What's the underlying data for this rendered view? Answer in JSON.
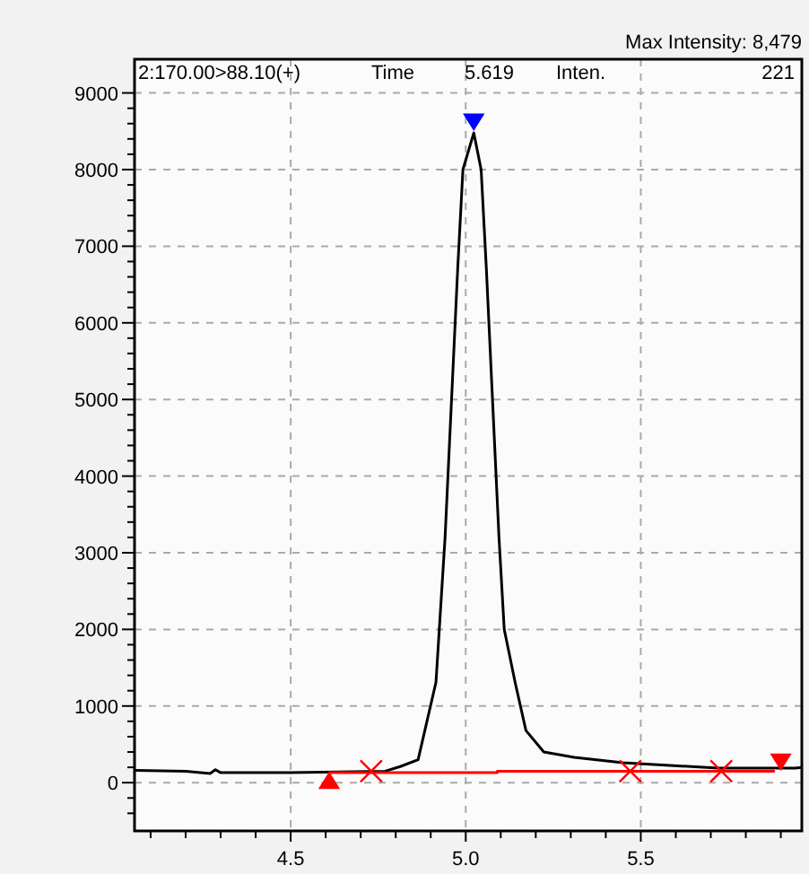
{
  "chart_data": {
    "type": "line",
    "annotations": [
      "Max Intensity:  8,479",
      "2:170.00>88.10(+)",
      "Time",
      "5.619",
      "Inten.",
      "221"
    ],
    "xlim": [
      4.054,
      5.96
    ],
    "ylim": [
      -630,
      9440
    ],
    "xticks": [
      {
        "value": 4.1,
        "label": null
      },
      {
        "value": 4.2,
        "label": null
      },
      {
        "value": 4.3,
        "label": null
      },
      {
        "value": 4.4,
        "label": null
      },
      4.5,
      {
        "value": 4.6,
        "label": null
      },
      {
        "value": 4.7,
        "label": null
      },
      {
        "value": 4.8,
        "label": null
      },
      {
        "value": 4.9,
        "label": null
      },
      {
        "value": 5.0,
        "label": "5.0"
      },
      {
        "value": 5.1,
        "label": null
      },
      {
        "value": 5.2,
        "label": null
      },
      {
        "value": 5.3,
        "label": null
      },
      {
        "value": 5.4,
        "label": null
      },
      5.5,
      {
        "value": 5.6,
        "label": null
      },
      {
        "value": 5.7,
        "label": null
      },
      {
        "value": 5.8,
        "label": null
      },
      {
        "value": 5.9,
        "label": null
      }
    ],
    "yticks": [
      {
        "value": -400,
        "label": null
      },
      {
        "value": -200,
        "label": null
      },
      0,
      {
        "value": 200,
        "label": null
      },
      {
        "value": 400,
        "label": null
      },
      {
        "value": 600,
        "label": null
      },
      {
        "value": 800,
        "label": null
      },
      1000,
      {
        "value": 1200,
        "label": null
      },
      {
        "value": 1400,
        "label": null
      },
      {
        "value": 1600,
        "label": null
      },
      {
        "value": 1800,
        "label": null
      },
      2000,
      {
        "value": 2200,
        "label": null
      },
      {
        "value": 2400,
        "label": null
      },
      {
        "value": 2600,
        "label": null
      },
      {
        "value": 2800,
        "label": null
      },
      3000,
      {
        "value": 3200,
        "label": null
      },
      {
        "value": 3400,
        "label": null
      },
      {
        "value": 3600,
        "label": null
      },
      {
        "value": 3800,
        "label": null
      },
      4000,
      {
        "value": 4200,
        "label": null
      },
      {
        "value": 4400,
        "label": null
      },
      {
        "value": 4600,
        "label": null
      },
      {
        "value": 4800,
        "label": null
      },
      5000,
      {
        "value": 5200,
        "label": null
      },
      {
        "value": 5400,
        "label": null
      },
      {
        "value": 5600,
        "label": null
      },
      {
        "value": 5800,
        "label": null
      },
      6000,
      {
        "value": 6200,
        "label": null
      },
      {
        "value": 6400,
        "label": null
      },
      {
        "value": 6600,
        "label": null
      },
      {
        "value": 6800,
        "label": null
      },
      7000,
      {
        "value": 7200,
        "label": null
      },
      {
        "value": 7400,
        "label": null
      },
      {
        "value": 7600,
        "label": null
      },
      {
        "value": 7800,
        "label": null
      },
      8000,
      {
        "value": 8200,
        "label": null
      },
      {
        "value": 8400,
        "label": null
      },
      {
        "value": 8600,
        "label": null
      },
      {
        "value": 8800,
        "label": null
      },
      9000
    ],
    "grid": true,
    "line_style": "solid",
    "series": [
      {
        "color": "#000000",
        "marker": "none",
        "x": [
          4.054,
          4.2,
          4.27,
          4.285,
          4.3,
          4.5,
          4.77,
          4.813,
          4.864,
          4.915,
          4.941,
          4.977,
          4.992,
          5.023,
          5.044,
          5.059,
          5.095,
          5.11,
          5.141,
          5.172,
          5.223,
          5.31,
          5.449,
          5.721,
          5.941,
          5.96
        ],
        "values": [
          160,
          150,
          120,
          170,
          130,
          130,
          150,
          210,
          300,
          1310,
          3200,
          6700,
          8000,
          8479,
          8000,
          6700,
          3200,
          2000,
          1310,
          680,
          400,
          330,
          260,
          190,
          190,
          200
        ]
      },
      {
        "color": "#ff0000",
        "marker": "none",
        "x": [
          4.61,
          5.09,
          5.09,
          5.88
        ],
        "values": [
          130,
          130,
          150,
          150
        ]
      },
      {
        "type": "scatter",
        "color": "#ff0000",
        "marker": "cross",
        "x": [
          4.73,
          5.47,
          5.73
        ],
        "values": [
          150,
          150,
          150
        ]
      },
      {
        "type": "scatter",
        "color": "#ff0000",
        "marker": "triangle",
        "x": [
          4.61,
          5.9
        ],
        "values": [
          50,
          250
        ]
      },
      {
        "type": "scatter",
        "color": "#0000ff",
        "marker": "triangle",
        "x": [
          5.023
        ],
        "values": [
          8600
        ]
      }
    ]
  }
}
